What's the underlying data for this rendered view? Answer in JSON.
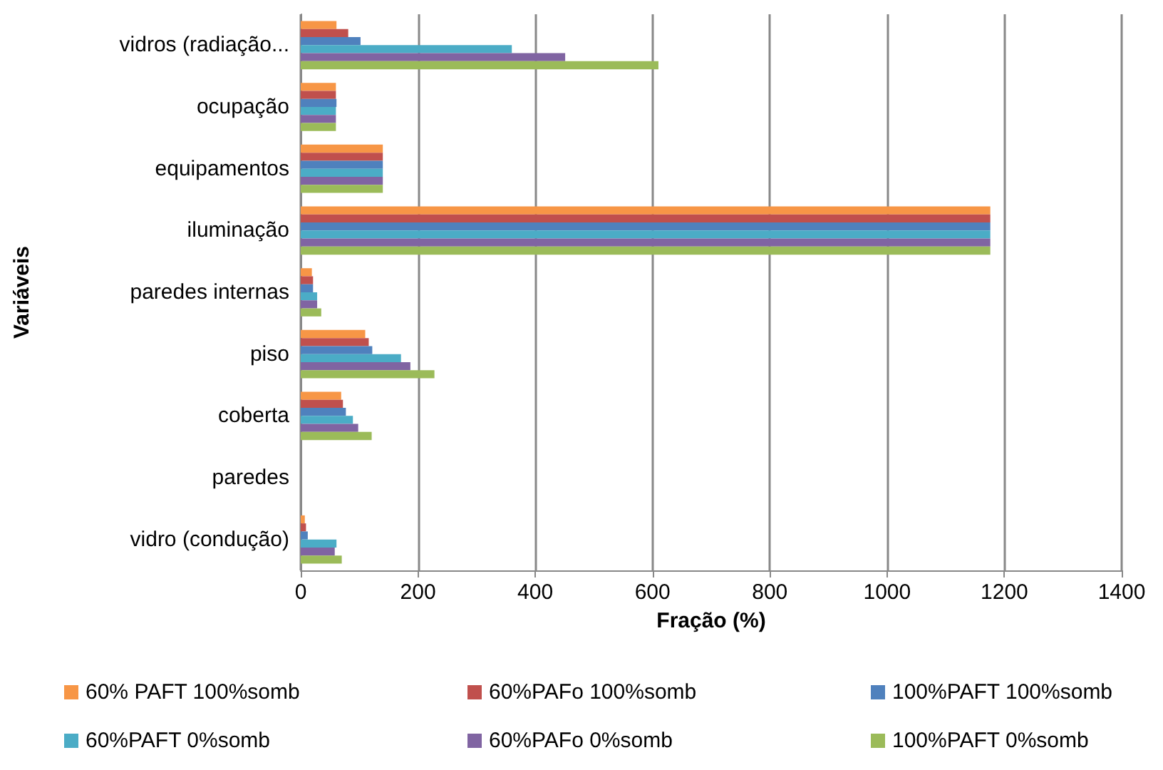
{
  "chart_data": {
    "type": "bar",
    "orientation": "horizontal",
    "xlabel": "Fração (%)",
    "ylabel": "Variáveis",
    "categories": [
      "vidros (radiação...",
      "ocupação",
      "equipamentos",
      "iluminação",
      "paredes internas",
      "piso",
      "coberta",
      "paredes",
      "vidro (condução)"
    ],
    "series": [
      {
        "name": "60% PAFT 100%somb",
        "color": "#f79646",
        "values": [
          61,
          60,
          140,
          1176,
          19,
          110,
          69,
          0,
          7
        ]
      },
      {
        "name": "60%PAFo 100%somb",
        "color": "#c0504d",
        "values": [
          81,
          60,
          140,
          1176,
          21,
          116,
          72,
          0,
          9
        ]
      },
      {
        "name": "100%PAFT 100%somb",
        "color": "#4f81bd",
        "values": [
          102,
          61,
          140,
          1176,
          21,
          122,
          77,
          0,
          12
        ]
      },
      {
        "name": "60%PAFT 0%somb",
        "color": "#4bacc6",
        "values": [
          360,
          60,
          140,
          1176,
          28,
          171,
          89,
          0,
          61
        ]
      },
      {
        "name": "60%PAFo 0%somb",
        "color": "#8064a2",
        "values": [
          451,
          60,
          140,
          1176,
          28,
          187,
          98,
          0,
          58
        ]
      },
      {
        "name": "100%PAFT 0%somb",
        "color": "#9bbb59",
        "values": [
          610,
          60,
          140,
          1176,
          35,
          228,
          121,
          0,
          70
        ]
      }
    ],
    "xlim": [
      0,
      1400
    ],
    "xticks": [
      0,
      200,
      400,
      600,
      800,
      1000,
      1200,
      1400
    ],
    "grid": "x",
    "legend": "bottom"
  }
}
